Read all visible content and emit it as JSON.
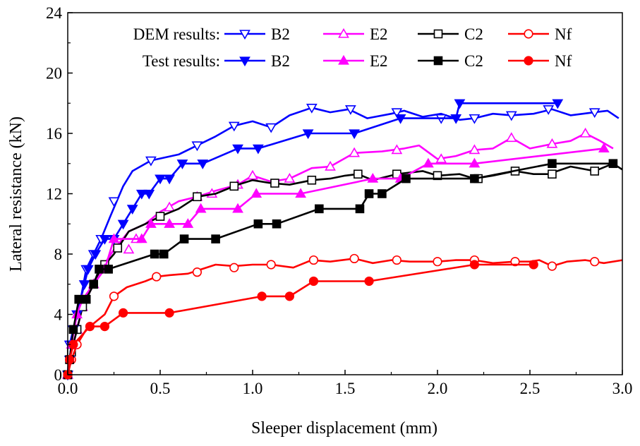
{
  "chart_data": {
    "type": "line",
    "title": "",
    "xlabel": "Sleeper displacement (mm)",
    "ylabel": "Lateral resistance (kN)",
    "xlim": [
      0,
      3.0
    ],
    "ylim": [
      0,
      24
    ],
    "xticks": [
      0.0,
      0.5,
      1.0,
      1.5,
      2.0,
      2.5,
      3.0
    ],
    "xtick_labels": [
      "0.0",
      "0.5",
      "1.0",
      "1.5",
      "2.0",
      "2.5",
      "3.0"
    ],
    "yticks": [
      0,
      4,
      8,
      12,
      16,
      20,
      24
    ],
    "ytick_labels": [
      "0",
      "4",
      "8",
      "12",
      "16",
      "20",
      "24"
    ],
    "grid": false,
    "legend": {
      "placement": "top",
      "rows": [
        {
          "label": "DEM results:",
          "group": "dem"
        },
        {
          "label": "Test results:",
          "group": "test"
        }
      ]
    },
    "series": [
      {
        "name": "B2",
        "group": "dem",
        "color": "#0000ff",
        "marker": "triangle-down-open",
        "points": [
          [
            0,
            0
          ],
          [
            0.01,
            2
          ],
          [
            0.03,
            3
          ],
          [
            0.05,
            4
          ],
          [
            0.07,
            5
          ],
          [
            0.1,
            7
          ],
          [
            0.14,
            8
          ],
          [
            0.18,
            9
          ],
          [
            0.23,
            10.5
          ],
          [
            0.3,
            12.5
          ],
          [
            0.35,
            13.5
          ],
          [
            0.45,
            14.2
          ],
          [
            0.6,
            14.6
          ],
          [
            0.7,
            15.2
          ],
          [
            0.8,
            15.8
          ],
          [
            0.9,
            16.5
          ],
          [
            1.0,
            16.8
          ],
          [
            1.1,
            16.4
          ],
          [
            1.2,
            17.2
          ],
          [
            1.32,
            17.7
          ],
          [
            1.42,
            17.4
          ],
          [
            1.52,
            17.6
          ],
          [
            1.62,
            17.0
          ],
          [
            1.75,
            17.3
          ],
          [
            1.82,
            17.5
          ],
          [
            1.92,
            17.1
          ],
          [
            2.02,
            17.3
          ],
          [
            2.12,
            16.9
          ],
          [
            2.2,
            17.0
          ],
          [
            2.3,
            17.3
          ],
          [
            2.4,
            17.2
          ],
          [
            2.52,
            17.3
          ],
          [
            2.62,
            17.6
          ],
          [
            2.72,
            17.2
          ],
          [
            2.85,
            17.4
          ],
          [
            2.92,
            17.5
          ],
          [
            2.98,
            17.0
          ]
        ],
        "marked_points": [
          [
            0,
            0
          ],
          [
            0.01,
            2
          ],
          [
            0.03,
            3
          ],
          [
            0.05,
            4
          ],
          [
            0.07,
            5
          ],
          [
            0.1,
            7
          ],
          [
            0.14,
            8
          ],
          [
            0.18,
            9
          ],
          [
            0.25,
            11.5
          ],
          [
            0.45,
            14.2
          ],
          [
            0.7,
            15.2
          ],
          [
            0.9,
            16.5
          ],
          [
            1.1,
            16.4
          ],
          [
            1.32,
            17.7
          ],
          [
            1.53,
            17.6
          ],
          [
            1.78,
            17.4
          ],
          [
            2.02,
            17.0
          ],
          [
            2.2,
            17.0
          ],
          [
            2.4,
            17.2
          ],
          [
            2.6,
            17.6
          ],
          [
            2.85,
            17.4
          ]
        ]
      },
      {
        "name": "E2",
        "group": "dem",
        "color": "#ff00ff",
        "marker": "triangle-up-open",
        "points": [
          [
            0,
            0
          ],
          [
            0.02,
            1.5
          ],
          [
            0.05,
            3
          ],
          [
            0.08,
            4.5
          ],
          [
            0.12,
            5.5
          ],
          [
            0.18,
            7
          ],
          [
            0.25,
            8.3
          ],
          [
            0.33,
            9.5
          ],
          [
            0.42,
            10
          ],
          [
            0.5,
            10.8
          ],
          [
            0.6,
            11.5
          ],
          [
            0.7,
            11.8
          ],
          [
            0.8,
            12.2
          ],
          [
            0.92,
            12.6
          ],
          [
            1.0,
            13.2
          ],
          [
            1.1,
            12.8
          ],
          [
            1.2,
            13.0
          ],
          [
            1.32,
            13.7
          ],
          [
            1.42,
            13.8
          ],
          [
            1.55,
            14.7
          ],
          [
            1.7,
            14.8
          ],
          [
            1.82,
            15.0
          ],
          [
            1.9,
            15.2
          ],
          [
            2.0,
            14.3
          ],
          [
            2.1,
            14.5
          ],
          [
            2.2,
            14.9
          ],
          [
            2.3,
            15.0
          ],
          [
            2.4,
            15.7
          ],
          [
            2.5,
            15.0
          ],
          [
            2.62,
            15.3
          ],
          [
            2.72,
            15.5
          ],
          [
            2.8,
            16.0
          ],
          [
            2.88,
            15.5
          ],
          [
            2.95,
            15.0
          ]
        ],
        "marked_points": [
          [
            0,
            0
          ],
          [
            0.05,
            3
          ],
          [
            0.08,
            4.5
          ],
          [
            0.14,
            6
          ],
          [
            0.2,
            7.2
          ],
          [
            0.33,
            8.3
          ],
          [
            0.37,
            9
          ],
          [
            0.55,
            11.1
          ],
          [
            0.7,
            11.8
          ],
          [
            0.78,
            12
          ],
          [
            0.92,
            12.6
          ],
          [
            1.0,
            13.2
          ],
          [
            1.2,
            13.0
          ],
          [
            1.42,
            13.8
          ],
          [
            1.55,
            14.7
          ],
          [
            1.78,
            14.9
          ],
          [
            2.02,
            14.3
          ],
          [
            2.2,
            14.9
          ],
          [
            2.4,
            15.7
          ],
          [
            2.62,
            15.3
          ],
          [
            2.8,
            16.0
          ]
        ]
      },
      {
        "name": "C2",
        "group": "dem",
        "color": "#000000",
        "marker": "square-open",
        "points": [
          [
            0,
            0
          ],
          [
            0.02,
            1.5
          ],
          [
            0.05,
            3
          ],
          [
            0.08,
            4.5
          ],
          [
            0.12,
            5.7
          ],
          [
            0.18,
            7
          ],
          [
            0.25,
            8
          ],
          [
            0.33,
            9.5
          ],
          [
            0.42,
            10
          ],
          [
            0.5,
            10.5
          ],
          [
            0.6,
            11
          ],
          [
            0.7,
            11.8
          ],
          [
            0.8,
            12
          ],
          [
            0.92,
            12.6
          ],
          [
            1.0,
            12.9
          ],
          [
            1.1,
            12.7
          ],
          [
            1.2,
            12.6
          ],
          [
            1.32,
            12.9
          ],
          [
            1.42,
            13.0
          ],
          [
            1.5,
            13.2
          ],
          [
            1.57,
            13.3
          ],
          [
            1.65,
            12.9
          ],
          [
            1.78,
            13.3
          ],
          [
            1.85,
            13.4
          ],
          [
            1.92,
            13.5
          ],
          [
            2.0,
            13.2
          ],
          [
            2.12,
            13.3
          ],
          [
            2.2,
            13.0
          ],
          [
            2.3,
            13.2
          ],
          [
            2.42,
            13.5
          ],
          [
            2.52,
            13.3
          ],
          [
            2.6,
            13.3
          ],
          [
            2.72,
            13.8
          ],
          [
            2.85,
            13.5
          ],
          [
            2.95,
            14.0
          ],
          [
            3.0,
            13.6
          ]
        ],
        "marked_points": [
          [
            0,
            0
          ],
          [
            0.02,
            1.5
          ],
          [
            0.05,
            3
          ],
          [
            0.08,
            4.5
          ],
          [
            0.2,
            7.3
          ],
          [
            0.27,
            8.4
          ],
          [
            0.5,
            10.5
          ],
          [
            0.7,
            11.8
          ],
          [
            0.9,
            12.5
          ],
          [
            1.12,
            12.7
          ],
          [
            1.32,
            12.9
          ],
          [
            1.57,
            13.3
          ],
          [
            1.78,
            13.3
          ],
          [
            2.0,
            13.2
          ],
          [
            2.22,
            13.0
          ],
          [
            2.42,
            13.5
          ],
          [
            2.62,
            13.3
          ],
          [
            2.85,
            13.5
          ]
        ]
      },
      {
        "name": "Nf",
        "group": "dem",
        "color": "#ff0000",
        "marker": "circle-open",
        "points": [
          [
            0,
            0
          ],
          [
            0.02,
            1
          ],
          [
            0.05,
            2
          ],
          [
            0.1,
            3
          ],
          [
            0.15,
            3.5
          ],
          [
            0.2,
            4
          ],
          [
            0.25,
            5.2
          ],
          [
            0.32,
            5.8
          ],
          [
            0.42,
            6.2
          ],
          [
            0.48,
            6.5
          ],
          [
            0.55,
            6.6
          ],
          [
            0.65,
            6.7
          ],
          [
            0.7,
            6.9
          ],
          [
            0.8,
            7.3
          ],
          [
            0.9,
            7.2
          ],
          [
            1.0,
            7.3
          ],
          [
            1.1,
            7.3
          ],
          [
            1.22,
            7.1
          ],
          [
            1.32,
            7.6
          ],
          [
            1.42,
            7.5
          ],
          [
            1.55,
            7.7
          ],
          [
            1.65,
            7.4
          ],
          [
            1.75,
            7.6
          ],
          [
            1.85,
            7.5
          ],
          [
            2.0,
            7.5
          ],
          [
            2.1,
            7.6
          ],
          [
            2.2,
            7.6
          ],
          [
            2.3,
            7.4
          ],
          [
            2.42,
            7.5
          ],
          [
            2.5,
            7.5
          ],
          [
            2.55,
            7.6
          ],
          [
            2.62,
            7.2
          ],
          [
            2.7,
            7.5
          ],
          [
            2.8,
            7.6
          ],
          [
            2.9,
            7.4
          ],
          [
            3.0,
            7.6
          ]
        ],
        "marked_points": [
          [
            0,
            0
          ],
          [
            0.02,
            1
          ],
          [
            0.05,
            2
          ],
          [
            0.25,
            5.2
          ],
          [
            0.48,
            6.5
          ],
          [
            0.7,
            6.8
          ],
          [
            0.9,
            7.1
          ],
          [
            1.1,
            7.3
          ],
          [
            1.33,
            7.6
          ],
          [
            1.55,
            7.7
          ],
          [
            1.78,
            7.6
          ],
          [
            2.0,
            7.5
          ],
          [
            2.2,
            7.6
          ],
          [
            2.42,
            7.5
          ],
          [
            2.62,
            7.2
          ],
          [
            2.85,
            7.5
          ]
        ]
      },
      {
        "name": "B2",
        "group": "test",
        "color": "#0000ff",
        "marker": "triangle-down-filled",
        "points": [
          [
            0,
            0
          ],
          [
            0.01,
            1
          ],
          [
            0.02,
            2
          ],
          [
            0.03,
            3
          ],
          [
            0.05,
            4
          ],
          [
            0.07,
            5
          ],
          [
            0.09,
            6
          ],
          [
            0.11,
            7
          ],
          [
            0.15,
            8
          ],
          [
            0.2,
            9
          ],
          [
            0.25,
            9
          ],
          [
            0.3,
            10
          ],
          [
            0.35,
            11
          ],
          [
            0.4,
            12
          ],
          [
            0.44,
            12
          ],
          [
            0.5,
            13
          ],
          [
            0.55,
            13
          ],
          [
            0.62,
            14
          ],
          [
            0.73,
            14
          ],
          [
            0.92,
            15
          ],
          [
            1.03,
            15
          ],
          [
            1.3,
            16
          ],
          [
            1.55,
            16
          ],
          [
            1.8,
            17
          ],
          [
            2.1,
            17
          ],
          [
            2.12,
            18
          ],
          [
            2.65,
            18
          ]
        ]
      },
      {
        "name": "E2",
        "group": "test",
        "color": "#ff00ff",
        "marker": "triangle-up-filled",
        "points": [
          [
            0,
            0
          ],
          [
            0.02,
            2
          ],
          [
            0.05,
            4
          ],
          [
            0.08,
            5
          ],
          [
            0.14,
            6
          ],
          [
            0.2,
            7
          ],
          [
            0.25,
            9
          ],
          [
            0.4,
            9
          ],
          [
            0.45,
            10
          ],
          [
            0.55,
            10
          ],
          [
            0.65,
            10
          ],
          [
            0.72,
            11
          ],
          [
            0.92,
            11
          ],
          [
            1.02,
            12
          ],
          [
            1.26,
            12
          ],
          [
            1.65,
            13
          ],
          [
            1.8,
            13
          ],
          [
            1.95,
            14
          ],
          [
            2.2,
            14
          ],
          [
            2.9,
            15
          ]
        ]
      },
      {
        "name": "C2",
        "group": "test",
        "color": "#000000",
        "marker": "square-filled",
        "points": [
          [
            0,
            0
          ],
          [
            0.01,
            1
          ],
          [
            0.03,
            3
          ],
          [
            0.06,
            5
          ],
          [
            0.1,
            5
          ],
          [
            0.14,
            6
          ],
          [
            0.17,
            7
          ],
          [
            0.22,
            7
          ],
          [
            0.47,
            8
          ],
          [
            0.52,
            8
          ],
          [
            0.63,
            9
          ],
          [
            0.8,
            9
          ],
          [
            1.03,
            10
          ],
          [
            1.13,
            10
          ],
          [
            1.36,
            11
          ],
          [
            1.58,
            11
          ],
          [
            1.63,
            12
          ],
          [
            1.7,
            12
          ],
          [
            1.83,
            13
          ],
          [
            2.2,
            13
          ],
          [
            2.62,
            14
          ],
          [
            2.95,
            14
          ]
        ]
      },
      {
        "name": "Nf",
        "group": "test",
        "color": "#ff0000",
        "marker": "circle-filled",
        "points": [
          [
            0,
            0
          ],
          [
            0.01,
            1
          ],
          [
            0.03,
            2
          ],
          [
            0.12,
            3.2
          ],
          [
            0.2,
            3.2
          ],
          [
            0.3,
            4.1
          ],
          [
            0.55,
            4.1
          ],
          [
            1.05,
            5.2
          ],
          [
            1.2,
            5.2
          ],
          [
            1.33,
            6.2
          ],
          [
            1.63,
            6.2
          ],
          [
            2.2,
            7.3
          ],
          [
            2.52,
            7.3
          ]
        ]
      }
    ]
  }
}
